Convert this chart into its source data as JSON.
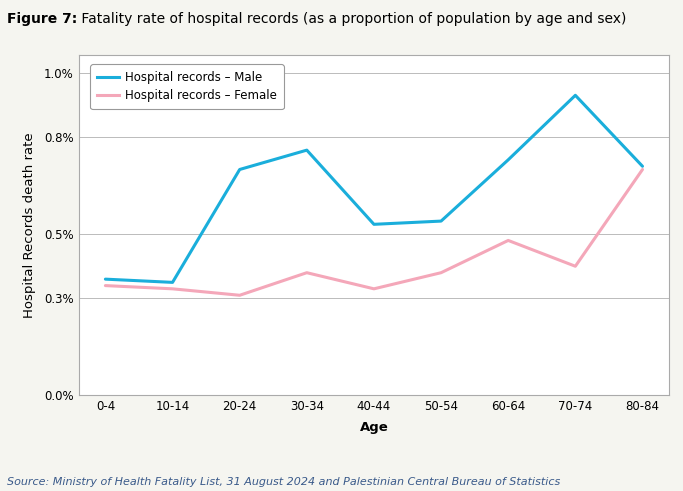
{
  "title_bold": "Figure 7:",
  "title_normal": " Fatality rate of hospital records (as a proportion of population by age and sex)",
  "xlabel": "Age",
  "ylabel": "Hospital Records death rate",
  "source": "Source: Ministry of Health Fatality List, 31 August 2024 and Palestinian Central Bureau of Statistics",
  "categories": [
    "0-4",
    "10-14",
    "20-24",
    "30-34",
    "40-44",
    "50-54",
    "60-64",
    "70-74",
    "80-84"
  ],
  "male_values": [
    0.0036,
    0.0035,
    0.007,
    0.0076,
    0.0053,
    0.0054,
    0.0073,
    0.0093,
    0.0071
  ],
  "female_values": [
    0.0034,
    0.0033,
    0.0031,
    0.0038,
    0.0033,
    0.0038,
    0.0048,
    0.004,
    0.007
  ],
  "male_color": "#1AAEDB",
  "female_color": "#F4A7B9",
  "legend_male": "Hospital records – Male",
  "legend_female": "Hospital records – Female",
  "ylim": [
    0.0,
    0.01055
  ],
  "yticks": [
    0.0,
    0.003,
    0.005,
    0.008,
    0.01
  ],
  "ytick_labels": [
    "0.0%",
    "0.3%",
    "0.5%",
    "0.8%",
    "1.0%"
  ],
  "background_color": "#f5f5f0",
  "plot_bg_color": "#ffffff",
  "grid_color": "#bbbbbb",
  "border_color": "#aaaaaa",
  "line_width": 2.2,
  "title_fontsize": 10,
  "axis_label_fontsize": 9.5,
  "tick_fontsize": 8.5,
  "legend_fontsize": 8.5,
  "source_fontsize": 8,
  "source_color": "#3a5a8a"
}
